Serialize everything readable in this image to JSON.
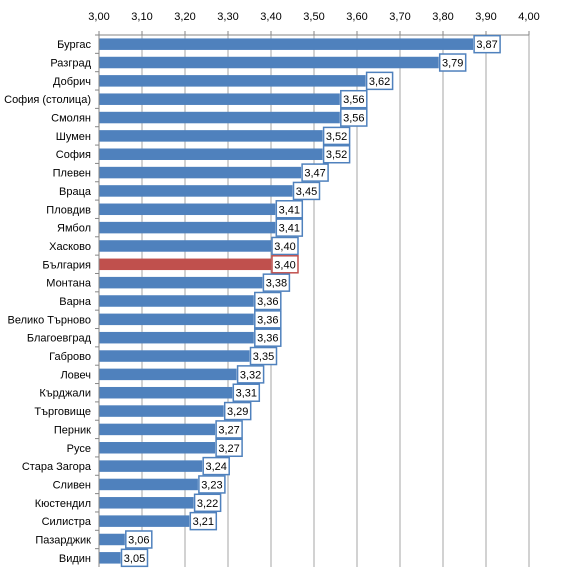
{
  "chart_data": {
    "type": "bar",
    "orientation": "horizontal",
    "title": "",
    "xlabel": "",
    "ylabel": "",
    "xlim": [
      3.0,
      4.0
    ],
    "x_ticks": [
      "3,00",
      "3,10",
      "3,20",
      "3,30",
      "3,40",
      "3,50",
      "3,60",
      "3,70",
      "3,80",
      "3,90",
      "4,00"
    ],
    "x_tick_values": [
      3.0,
      3.1,
      3.2,
      3.3,
      3.4,
      3.5,
      3.6,
      3.7,
      3.8,
      3.9,
      4.0
    ],
    "x_axis_position": "top",
    "grid": true,
    "legend": "none",
    "categories": [
      "Бургас",
      "Разград",
      "Добрич",
      "София (столица)",
      "Смолян",
      "Шумен",
      "София",
      "Плевен",
      "Враца",
      "Пловдив",
      "Ямбол",
      "Хасково",
      "България",
      "Монтана",
      "Варна",
      "Велико Търново",
      "Благоевград",
      "Габрово",
      "Ловеч",
      "Кърджали",
      "Търговище",
      "Перник",
      "Русе",
      "Стара Загора",
      "Сливен",
      "Кюстендил",
      "Силистра",
      "Пазарджик",
      "Видин"
    ],
    "values": [
      3.87,
      3.79,
      3.62,
      3.56,
      3.56,
      3.52,
      3.52,
      3.47,
      3.45,
      3.41,
      3.41,
      3.4,
      3.4,
      3.38,
      3.36,
      3.36,
      3.36,
      3.35,
      3.32,
      3.31,
      3.29,
      3.27,
      3.27,
      3.24,
      3.23,
      3.22,
      3.21,
      3.06,
      3.05
    ],
    "data_labels": [
      "3,87",
      "3,79",
      "3,62",
      "3,56",
      "3,56",
      "3,52",
      "3,52",
      "3,47",
      "3,45",
      "3,41",
      "3,41",
      "3,40",
      "3,40",
      "3,38",
      "3,36",
      "3,36",
      "3,36",
      "3,35",
      "3,32",
      "3,31",
      "3,29",
      "3,27",
      "3,27",
      "3,24",
      "3,23",
      "3,22",
      "3,21",
      "3,06",
      "3,05"
    ],
    "highlight_category": "България",
    "colors": {
      "bar": "#4f81bd",
      "highlight": "#c0504d",
      "label_border": "#4f81bd",
      "highlight_label_border": "#c0504d",
      "grid": "#a6a6a6",
      "text": "#000000"
    }
  }
}
